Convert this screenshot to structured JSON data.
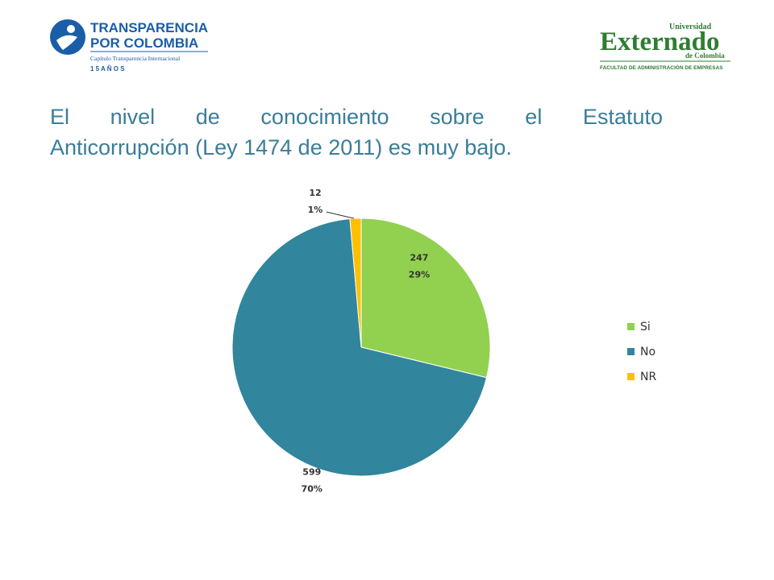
{
  "logos": {
    "left": {
      "line1": "TRANSPARENCIA",
      "line2": "POR COLOMBIA",
      "line3": "Capítulo Transparencia Internacional",
      "line4": "1 5   A Ñ O S"
    },
    "right": {
      "line1": "Universidad",
      "line2": "Externado",
      "line3": "de Colombia",
      "line4": "FACULTAD DE ADMINISTRACIÓN DE EMPRESAS"
    }
  },
  "title_line1": "El nivel de conocimiento sobre el Estatuto",
  "title_line2": "Anticorrupción (Ley 1474 de 2011) es muy bajo.",
  "colors": {
    "title": "#3a7d9a",
    "si": "#92d050",
    "no": "#31859c",
    "nr": "#ffc000",
    "logo_blue": "#1a5ea8",
    "logo_green": "#2e7d32"
  },
  "chart_data": {
    "type": "pie",
    "title": "",
    "start_angle_deg": 0,
    "direction": "clockwise",
    "slices": [
      {
        "label": "Si",
        "value": 247,
        "percent": "29%",
        "color": "#92d050"
      },
      {
        "label": "No",
        "value": 599,
        "percent": "70%",
        "color": "#31859c"
      },
      {
        "label": "NR",
        "value": 12,
        "percent": "1%",
        "color": "#ffc000"
      }
    ],
    "legend_position": "right"
  }
}
